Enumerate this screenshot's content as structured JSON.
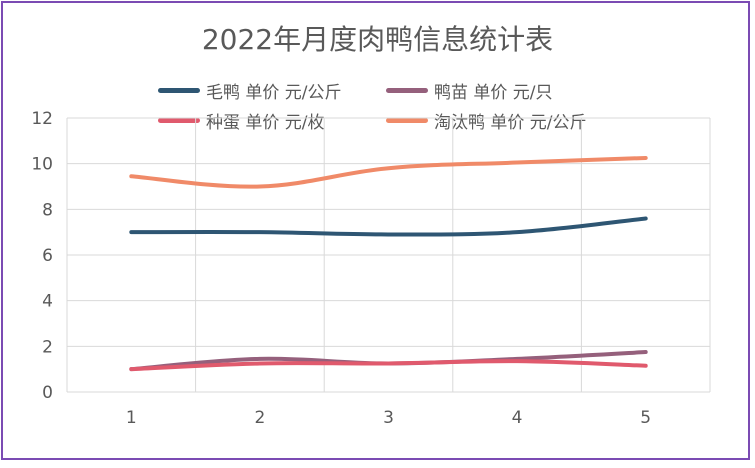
{
  "chart_data": {
    "type": "line",
    "title": "2022年月度肉鸭信息统计表",
    "x": [
      1,
      2,
      3,
      4,
      5
    ],
    "ylim": [
      0,
      12
    ],
    "yticks": [
      0,
      2,
      4,
      6,
      8,
      10,
      12
    ],
    "grid": true,
    "legend_position": "top",
    "series": [
      {
        "name": "毛鸭 单价 元/公斤",
        "color": "#2e5673",
        "values": [
          7.0,
          7.0,
          6.9,
          7.0,
          7.6
        ]
      },
      {
        "name": "鸭苗 单价 元/只",
        "color": "#95607c",
        "values": [
          1.0,
          1.45,
          1.25,
          1.45,
          1.75
        ]
      },
      {
        "name": "种蛋 单价 元/枚",
        "color": "#e05a6d",
        "values": [
          1.0,
          1.25,
          1.25,
          1.35,
          1.15
        ]
      },
      {
        "name": "淘汰鸭 单价 元/公斤",
        "color": "#f08a68",
        "values": [
          9.45,
          9.0,
          9.8,
          10.05,
          10.25
        ]
      }
    ]
  }
}
